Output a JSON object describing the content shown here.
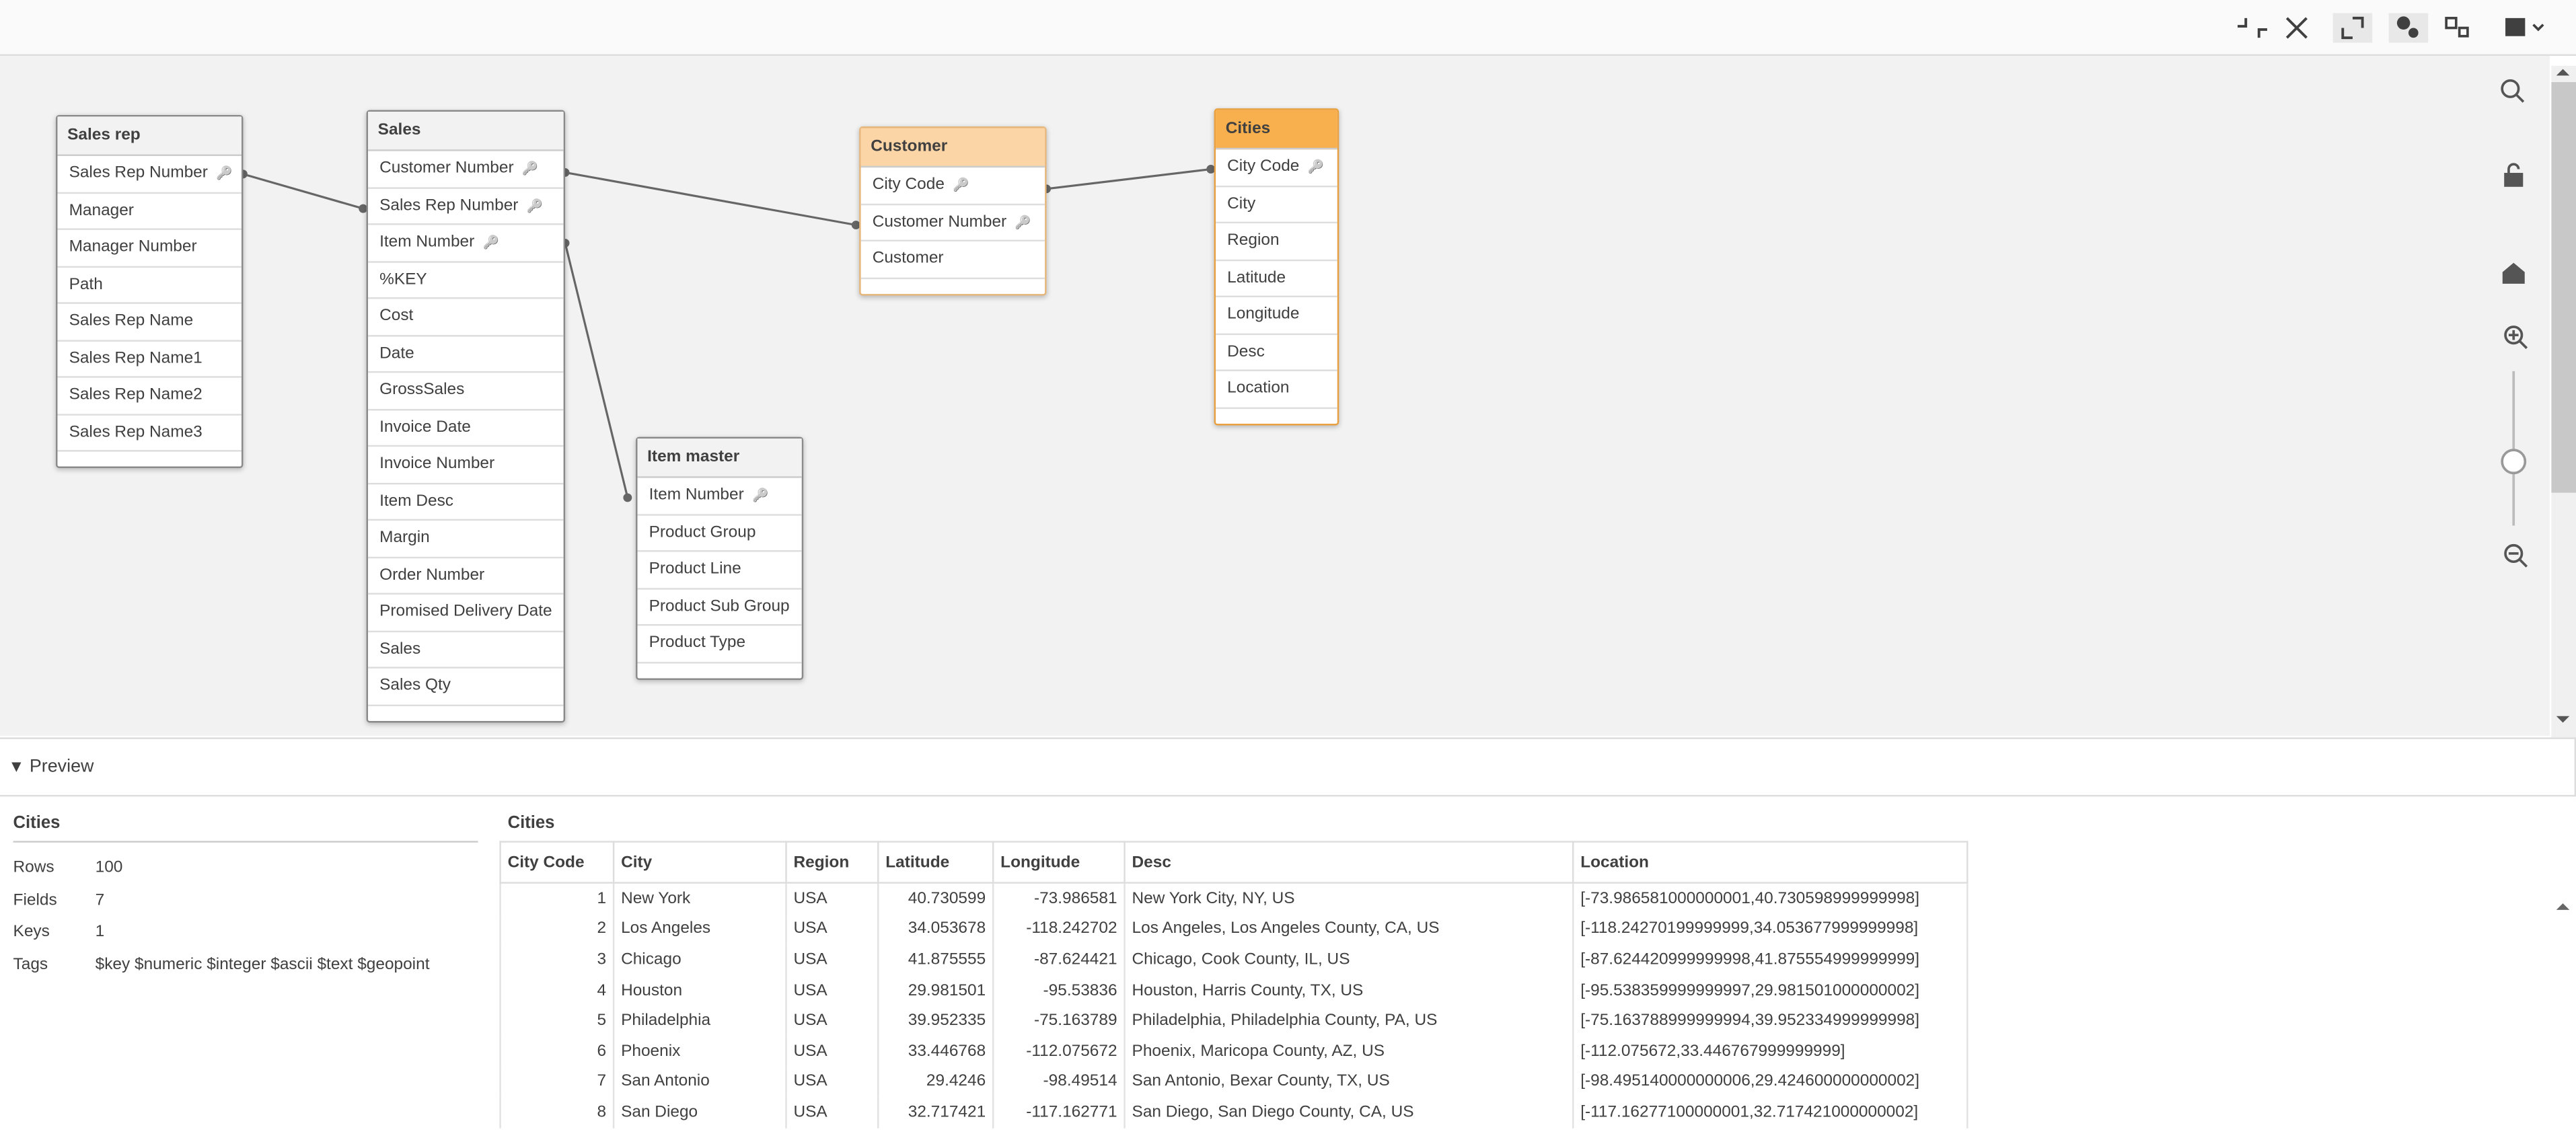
{
  "nodes": [
    {
      "name": "Sales rep",
      "fields": [
        {
          "name": "Sales Rep Number",
          "key": true
        },
        {
          "name": "Manager"
        },
        {
          "name": "Manager Number"
        },
        {
          "name": "Path"
        },
        {
          "name": "Sales Rep Name"
        },
        {
          "name": "Sales Rep Name1"
        },
        {
          "name": "Sales Rep Name2"
        },
        {
          "name": "Sales Rep Name3"
        }
      ]
    },
    {
      "name": "Sales",
      "fields": [
        {
          "name": "Customer Number",
          "key": true
        },
        {
          "name": "Sales Rep Number",
          "key": true
        },
        {
          "name": "Item Number",
          "key": true
        },
        {
          "name": "%KEY"
        },
        {
          "name": "Cost"
        },
        {
          "name": "Date"
        },
        {
          "name": "GrossSales"
        },
        {
          "name": "Invoice Date"
        },
        {
          "name": "Invoice Number"
        },
        {
          "name": "Item Desc"
        },
        {
          "name": "Margin"
        },
        {
          "name": "Order Number"
        },
        {
          "name": "Promised Delivery Date"
        },
        {
          "name": "Sales"
        },
        {
          "name": "Sales Qty"
        }
      ]
    },
    {
      "name": "Customer",
      "fields": [
        {
          "name": "City Code",
          "key": true
        },
        {
          "name": "Customer Number",
          "key": true
        },
        {
          "name": "Customer"
        }
      ]
    },
    {
      "name": "Cities",
      "fields": [
        {
          "name": "City Code",
          "key": true
        },
        {
          "name": "City"
        },
        {
          "name": "Region"
        },
        {
          "name": "Latitude"
        },
        {
          "name": "Longitude"
        },
        {
          "name": "Desc"
        },
        {
          "name": "Location"
        }
      ]
    },
    {
      "name": "Item master",
      "fields": [
        {
          "name": "Item Number",
          "key": true
        },
        {
          "name": "Product Group"
        },
        {
          "name": "Product Line"
        },
        {
          "name": "Product Sub Group"
        },
        {
          "name": "Product Type"
        }
      ]
    }
  ],
  "preview": {
    "title": "Preview",
    "summary": {
      "title": "Cities",
      "rows": [
        [
          "Rows",
          "100"
        ],
        [
          "Fields",
          "7"
        ],
        [
          "Keys",
          "1"
        ],
        [
          "Tags",
          "$key $numeric $integer $ascii $text $geopoint"
        ]
      ]
    },
    "table": {
      "title": "Cities",
      "columns": [
        "City Code",
        "City",
        "Region",
        "Latitude",
        "Longitude",
        "Desc",
        "Location"
      ],
      "rows": [
        [
          "1",
          "New York",
          "USA",
          "40.730599",
          "-73.986581",
          "New York City, NY, US",
          "[-73.986581000000001,40.730598999999998]"
        ],
        [
          "2",
          "Los Angeles",
          "USA",
          "34.053678",
          "-118.242702",
          "Los Angeles, Los Angeles County, CA, US",
          "[-118.24270199999999,34.053677999999998]"
        ],
        [
          "3",
          "Chicago",
          "USA",
          "41.875555",
          "-87.624421",
          "Chicago, Cook County, IL, US",
          "[-87.624420999999998,41.875554999999999]"
        ],
        [
          "4",
          "Houston",
          "USA",
          "29.981501",
          "-95.53836",
          "Houston, Harris County, TX, US",
          "[-95.538359999999997,29.981501000000002]"
        ],
        [
          "5",
          "Philadelphia",
          "USA",
          "39.952335",
          "-75.163789",
          "Philadelphia, Philadelphia County, PA, US",
          "[-75.163788999999994,39.952334999999998]"
        ],
        [
          "6",
          "Phoenix",
          "USA",
          "33.446768",
          "-112.075672",
          "Phoenix, Maricopa County, AZ, US",
          "[-112.075672,33.446767999999999]"
        ],
        [
          "7",
          "San Antonio",
          "USA",
          "29.4246",
          "-98.49514",
          "San Antonio, Bexar County, TX, US",
          "[-98.495140000000006,29.424600000000002]"
        ],
        [
          "8",
          "San Diego",
          "USA",
          "32.717421",
          "-117.162771",
          "San Diego, San Diego County, CA, US",
          "[-117.16277100000001,32.717421000000002]"
        ]
      ]
    }
  }
}
